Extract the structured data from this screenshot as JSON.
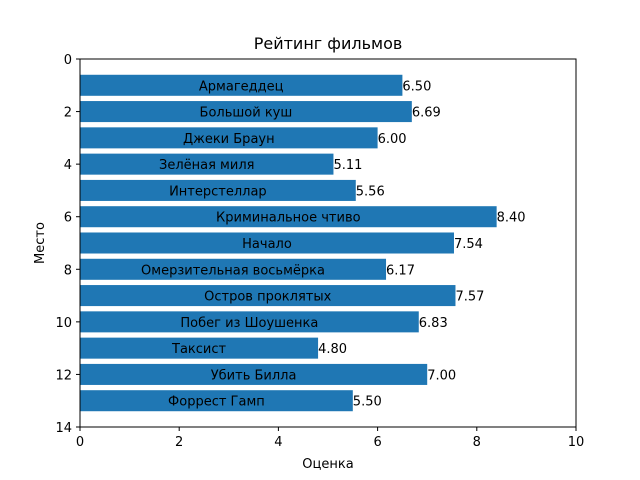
{
  "chart_data": {
    "type": "bar",
    "orientation": "horizontal",
    "title": "Рейтинг фильмов",
    "xlabel": "Оценка",
    "ylabel": "Место",
    "xlim": [
      0,
      10
    ],
    "ylim": [
      14,
      0
    ],
    "xticks": [
      0,
      2,
      4,
      6,
      8,
      10
    ],
    "yticks": [
      0,
      2,
      4,
      6,
      8,
      10,
      12,
      14
    ],
    "bar_color": "#1f77b4",
    "grid": false,
    "categories": [
      "Армагеддец",
      "Большой куш",
      "Джеки Браун",
      "Зелёная миля",
      "Интерстеллар",
      "Криминальное чтиво",
      "Начало",
      "Омерзительная восьмёрка",
      "Остров проклятых",
      "Побег из Шоушенка",
      "Таксист",
      "Убить Билла",
      "Форрест Гамп"
    ],
    "positions": [
      1,
      2,
      3,
      4,
      5,
      6,
      7,
      8,
      9,
      10,
      11,
      12,
      13
    ],
    "values": [
      6.5,
      6.69,
      6.0,
      5.11,
      5.56,
      8.4,
      7.54,
      6.17,
      7.57,
      6.83,
      4.8,
      7.0,
      5.5
    ],
    "value_labels": [
      "6.50",
      "6.69",
      "6.00",
      "5.11",
      "5.56",
      "8.40",
      "7.54",
      "6.17",
      "7.57",
      "6.83",
      "4.80",
      "7.00",
      "5.50"
    ]
  }
}
